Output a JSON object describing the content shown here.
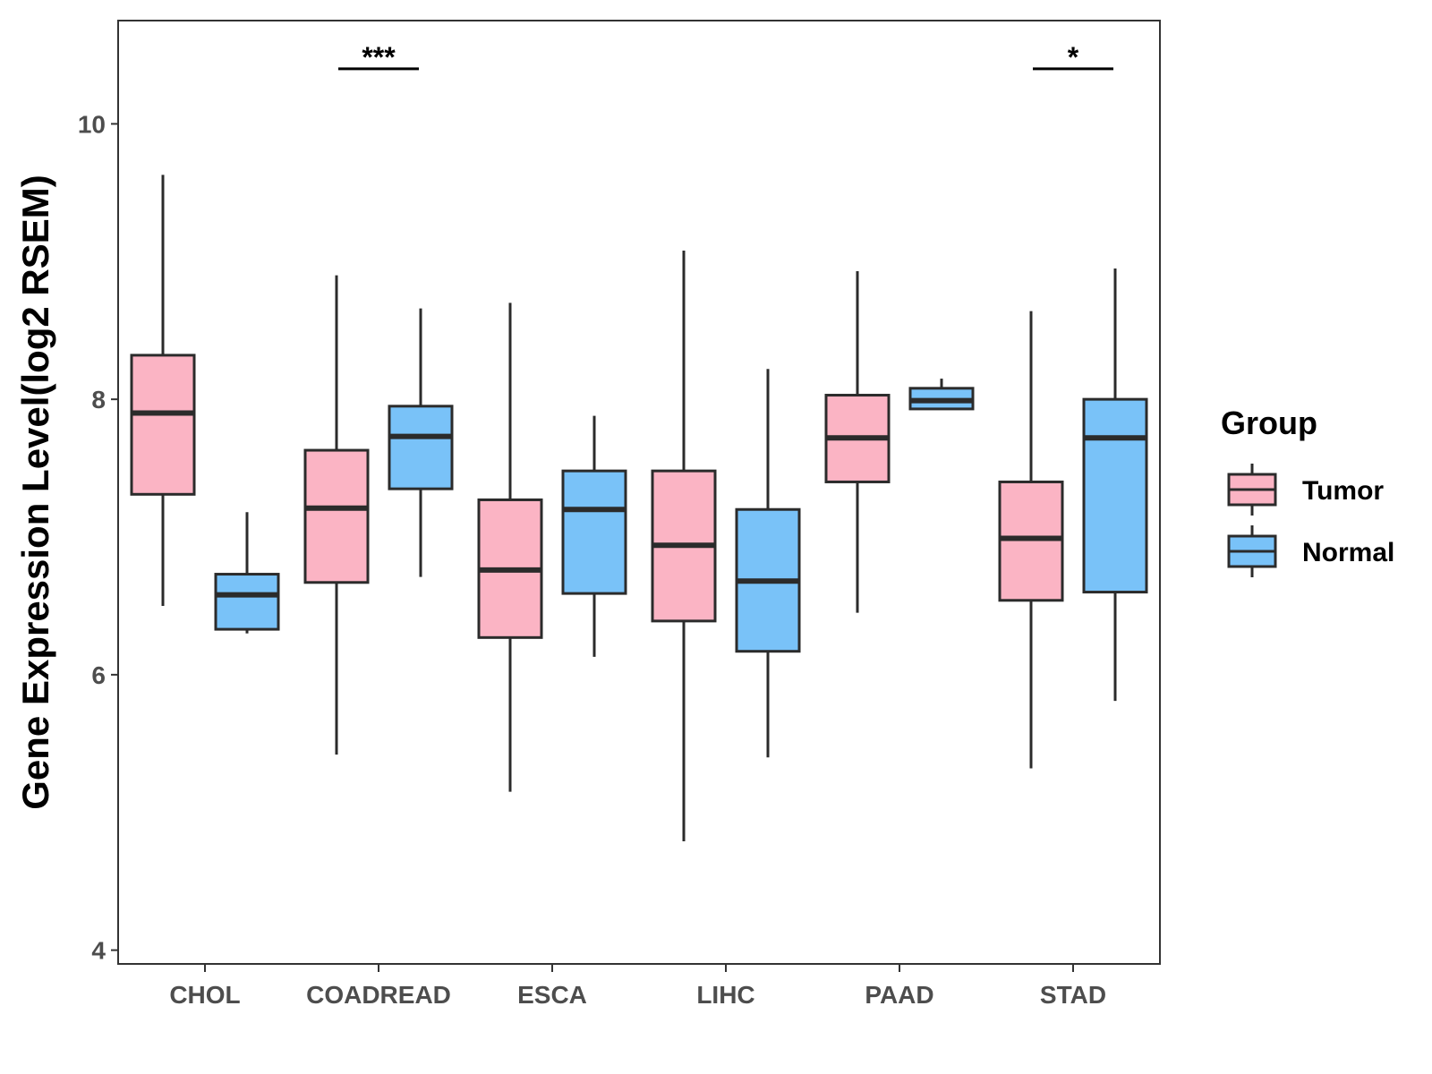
{
  "chart_data": {
    "type": "boxplot",
    "title": "",
    "xlabel": "",
    "ylabel": "Gene Expression Level(log2 RSEM)",
    "ylim": [
      3.9,
      10.75
    ],
    "yticks": [
      4,
      6,
      8,
      10
    ],
    "grid": false,
    "legend": {
      "title": "Group",
      "position": "right",
      "entries": [
        {
          "name": "Tumor",
          "color": "#FBB4C4"
        },
        {
          "name": "Normal",
          "color": "#79C2F8"
        }
      ]
    },
    "categories": [
      "CHOL",
      "COADREAD",
      "ESCA",
      "LIHC",
      "PAAD",
      "STAD"
    ],
    "series": [
      {
        "name": "Tumor",
        "color": "#FBB4C4",
        "boxes": [
          {
            "min": 6.5,
            "q1": 7.31,
            "median": 7.9,
            "q3": 8.32,
            "max": 9.63
          },
          {
            "min": 5.42,
            "q1": 6.67,
            "median": 7.21,
            "q3": 7.63,
            "max": 8.9
          },
          {
            "min": 5.15,
            "q1": 6.27,
            "median": 6.76,
            "q3": 7.27,
            "max": 8.7
          },
          {
            "min": 4.79,
            "q1": 6.39,
            "median": 6.94,
            "q3": 7.48,
            "max": 9.08
          },
          {
            "min": 6.45,
            "q1": 7.4,
            "median": 7.72,
            "q3": 8.03,
            "max": 8.93
          },
          {
            "min": 5.32,
            "q1": 6.54,
            "median": 6.99,
            "q3": 7.4,
            "max": 8.64
          }
        ]
      },
      {
        "name": "Normal",
        "color": "#79C2F8",
        "boxes": [
          {
            "min": 6.3,
            "q1": 6.33,
            "median": 6.58,
            "q3": 6.73,
            "max": 7.18
          },
          {
            "min": 6.71,
            "q1": 7.35,
            "median": 7.73,
            "q3": 7.95,
            "max": 8.66
          },
          {
            "min": 6.13,
            "q1": 6.59,
            "median": 7.2,
            "q3": 7.48,
            "max": 7.88
          },
          {
            "min": 5.4,
            "q1": 6.17,
            "median": 6.68,
            "q3": 7.2,
            "max": 8.22
          },
          {
            "min": 7.93,
            "q1": 7.93,
            "median": 7.99,
            "q3": 8.08,
            "max": 8.15
          },
          {
            "min": 5.81,
            "q1": 6.6,
            "median": 7.72,
            "q3": 8.0,
            "max": 8.95
          }
        ]
      }
    ],
    "annotations": [
      {
        "category": "COADREAD",
        "label": "***",
        "y": 10.4
      },
      {
        "category": "STAD",
        "label": "*",
        "y": 10.4
      }
    ]
  }
}
